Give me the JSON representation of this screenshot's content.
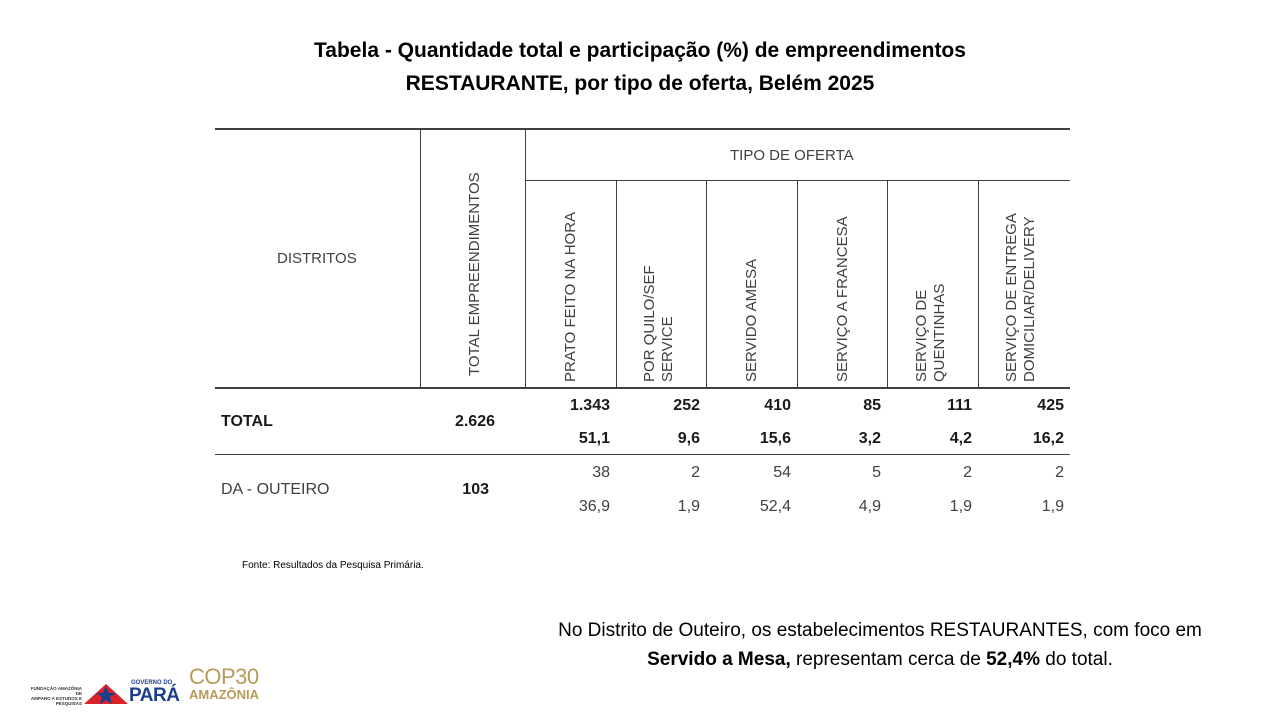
{
  "title": {
    "line1": "Tabela -  Quantidade total e participação (%) de empreendimentos",
    "line2": "RESTAURANTE, por tipo de oferta, Belém 2025"
  },
  "table": {
    "col_distritos": "DISTRITOS",
    "col_total": "TOTAL EMPREENDIMENTOS",
    "group_header": "TIPO DE OFERTA",
    "offer_columns": [
      {
        "line1": "PRATO FEITO NA HORA",
        "line2": ""
      },
      {
        "line1": "POR QUILO/SEF",
        "line2": "SERVICE"
      },
      {
        "line1": "SERVIDO AMESA",
        "line2": ""
      },
      {
        "line1": "SERVIÇO A FRANCESA",
        "line2": ""
      },
      {
        "line1": "SERVIÇO DE",
        "line2": "QUENTINHAS"
      },
      {
        "line1": "SERVIÇO DE ENTREGA",
        "line2": "DOMICILIAR/DELIVERY"
      }
    ],
    "rows": [
      {
        "label": "TOTAL",
        "total": "2.626",
        "counts": [
          "1.343",
          "252",
          "410",
          "85",
          "111",
          "425"
        ],
        "percents": [
          "51,1",
          "9,6",
          "15,6",
          "3,2",
          "4,2",
          "16,2"
        ]
      },
      {
        "label": "DA - OUTEIRO",
        "total": "103",
        "counts": [
          "38",
          "2",
          "54",
          "5",
          "2",
          "2"
        ],
        "percents": [
          "36,9",
          "1,9",
          "52,4",
          "4,9",
          "1,9",
          "1,9"
        ]
      }
    ]
  },
  "source": "Fonte: Resultados da Pesquisa Primária.",
  "note": {
    "part1": "No Distrito de Outeiro, os estabelecimentos RESTAURANTES, com foco em",
    "bold1": "Servido a Mesa,",
    "part2": " representam cerca de ",
    "bold2": "52,4%",
    "part3": " do total."
  },
  "logos": {
    "fapespa_line1": "FUNDAÇÃO AMAZÔNIA DE",
    "fapespa_line2": "AMPARO A ESTUDOS E",
    "fapespa_line3": "PESQUISAS",
    "gov_small": "GOVERNO DO",
    "gov_big": "PARÁ",
    "cop_line1": "COP30",
    "cop_line2": "AMAZÔNIA"
  },
  "colors": {
    "pa_red": "#d8232a",
    "pa_blue": "#1b3f8c",
    "cop_gold": "#b89a5a"
  }
}
